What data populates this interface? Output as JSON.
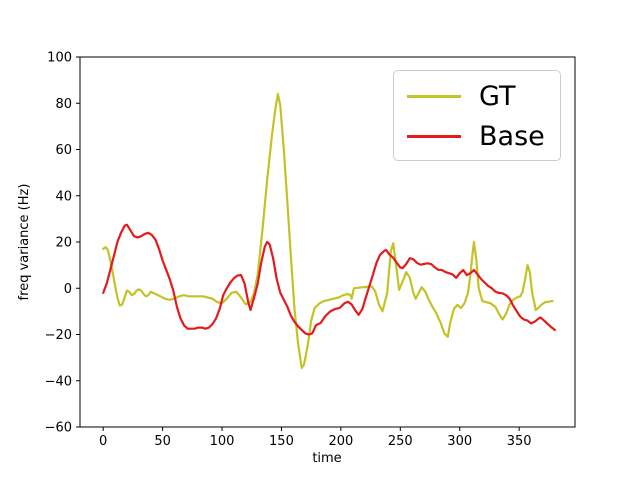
{
  "chart_data": {
    "type": "line",
    "title": "",
    "xlabel": "time",
    "ylabel": "freq variance (Hz)",
    "xlim": [
      -19.5,
      397
    ],
    "ylim": [
      -60,
      100
    ],
    "x_ticks": [
      0,
      50,
      100,
      150,
      200,
      250,
      300,
      350
    ],
    "x_tick_labels": [
      "0",
      "50",
      "100",
      "150",
      "200",
      "250",
      "300",
      "350"
    ],
    "y_ticks": [
      -60,
      -40,
      -20,
      0,
      20,
      40,
      60,
      80,
      100
    ],
    "y_tick_labels": [
      "−60",
      "−40",
      "−20",
      "0",
      "20",
      "40",
      "60",
      "80",
      "100"
    ],
    "grid": false,
    "axis_color": "#000000",
    "legend": {
      "position": "upper right",
      "border_color": "#cccccc",
      "entries": [
        "GT",
        "Base"
      ]
    },
    "series": [
      {
        "name": "GT",
        "color": "#c3c327",
        "points": [
          [
            0,
            17
          ],
          [
            2,
            17.8
          ],
          [
            4,
            16.5
          ],
          [
            6,
            12
          ],
          [
            8,
            7
          ],
          [
            10,
            1
          ],
          [
            12,
            -4
          ],
          [
            14,
            -7.5
          ],
          [
            16,
            -7
          ],
          [
            18,
            -4
          ],
          [
            20,
            -1
          ],
          [
            22,
            -1.5
          ],
          [
            24,
            -3
          ],
          [
            26,
            -2.5
          ],
          [
            28,
            -1
          ],
          [
            30,
            -0.5
          ],
          [
            32,
            -1
          ],
          [
            34,
            -2.5
          ],
          [
            36,
            -3.5
          ],
          [
            38,
            -3
          ],
          [
            40,
            -1.5
          ],
          [
            44,
            -2.5
          ],
          [
            48,
            -3.5
          ],
          [
            52,
            -4.5
          ],
          [
            56,
            -5
          ],
          [
            60,
            -4.5
          ],
          [
            64,
            -3.5
          ],
          [
            68,
            -3
          ],
          [
            72,
            -3.5
          ],
          [
            76,
            -3.5
          ],
          [
            80,
            -3.5
          ],
          [
            84,
            -3.5
          ],
          [
            88,
            -4
          ],
          [
            92,
            -4.5
          ],
          [
            96,
            -6
          ],
          [
            100,
            -6.5
          ],
          [
            104,
            -4.5
          ],
          [
            108,
            -2
          ],
          [
            112,
            -1.5
          ],
          [
            116,
            -4
          ],
          [
            120,
            -7
          ],
          [
            124,
            -6
          ],
          [
            127,
            -2
          ],
          [
            130,
            6
          ],
          [
            134,
            25
          ],
          [
            138,
            47
          ],
          [
            142,
            66
          ],
          [
            145,
            78
          ],
          [
            147,
            84
          ],
          [
            149,
            79
          ],
          [
            152,
            60
          ],
          [
            155,
            37
          ],
          [
            158,
            13
          ],
          [
            161,
            -9
          ],
          [
            164,
            -24
          ],
          [
            167,
            -34.5
          ],
          [
            169,
            -33
          ],
          [
            172,
            -25
          ],
          [
            175,
            -14
          ],
          [
            178,
            -8.5
          ],
          [
            182,
            -6.5
          ],
          [
            186,
            -5.5
          ],
          [
            190,
            -5
          ],
          [
            194,
            -4.5
          ],
          [
            198,
            -4
          ],
          [
            202,
            -3
          ],
          [
            206,
            -2.5
          ],
          [
            208,
            -3
          ],
          [
            209,
            -4.5
          ],
          [
            211,
            0
          ],
          [
            214,
            0.2
          ],
          [
            218,
            0.4
          ],
          [
            222,
            0.6
          ],
          [
            226,
            0.8
          ],
          [
            229,
            -1.5
          ],
          [
            232,
            -7
          ],
          [
            235,
            -10
          ],
          [
            239,
            -2
          ],
          [
            242,
            16
          ],
          [
            244,
            19.5
          ],
          [
            247,
            8
          ],
          [
            249,
            -0.7
          ],
          [
            252,
            3
          ],
          [
            255,
            7
          ],
          [
            258,
            4.5
          ],
          [
            261,
            -2
          ],
          [
            263,
            -4.5
          ],
          [
            266,
            -1.5
          ],
          [
            268,
            0.5
          ],
          [
            271,
            -1.5
          ],
          [
            274,
            -5
          ],
          [
            277,
            -8
          ],
          [
            280,
            -10.5
          ],
          [
            284,
            -15
          ],
          [
            287,
            -19.5
          ],
          [
            290,
            -21
          ],
          [
            292,
            -15
          ],
          [
            295,
            -9
          ],
          [
            298,
            -7.2
          ],
          [
            301,
            -8.5
          ],
          [
            304,
            -6.5
          ],
          [
            307,
            -2
          ],
          [
            309,
            6
          ],
          [
            311,
            16
          ],
          [
            312,
            20
          ],
          [
            314,
            12
          ],
          [
            316,
            0
          ],
          [
            319,
            -5.5
          ],
          [
            322,
            -6
          ],
          [
            326,
            -6.5
          ],
          [
            330,
            -8
          ],
          [
            333,
            -11
          ],
          [
            336,
            -13.5
          ],
          [
            339,
            -11
          ],
          [
            342,
            -7
          ],
          [
            345,
            -5
          ],
          [
            348,
            -4
          ],
          [
            351,
            -3.5
          ],
          [
            353,
            -1.5
          ],
          [
            355,
            4
          ],
          [
            357,
            10
          ],
          [
            359,
            7
          ],
          [
            361,
            -2
          ],
          [
            364,
            -9.4
          ],
          [
            366,
            -8.5
          ],
          [
            369,
            -7
          ],
          [
            372,
            -6
          ],
          [
            375,
            -5.8
          ],
          [
            378,
            -5.5
          ]
        ]
      },
      {
        "name": "Base",
        "color": "#e41a1c",
        "points": [
          [
            0,
            -2
          ],
          [
            3,
            2
          ],
          [
            6,
            8
          ],
          [
            9,
            14
          ],
          [
            12,
            20
          ],
          [
            15,
            24
          ],
          [
            18,
            27
          ],
          [
            20,
            27.5
          ],
          [
            23,
            25
          ],
          [
            26,
            22.5
          ],
          [
            29,
            22
          ],
          [
            32,
            22.5
          ],
          [
            35,
            23.5
          ],
          [
            38,
            24
          ],
          [
            41,
            23
          ],
          [
            44,
            21
          ],
          [
            47,
            17
          ],
          [
            50,
            12
          ],
          [
            53,
            8
          ],
          [
            56,
            4
          ],
          [
            59,
            -1
          ],
          [
            62,
            -8
          ],
          [
            65,
            -13
          ],
          [
            68,
            -16
          ],
          [
            71,
            -17.5
          ],
          [
            74,
            -17.5
          ],
          [
            77,
            -17.5
          ],
          [
            80,
            -17
          ],
          [
            83,
            -17
          ],
          [
            86,
            -17.5
          ],
          [
            89,
            -17
          ],
          [
            92,
            -15.5
          ],
          [
            95,
            -13
          ],
          [
            98,
            -9
          ],
          [
            101,
            -3
          ],
          [
            104,
            0
          ],
          [
            107,
            2.5
          ],
          [
            110,
            4.3
          ],
          [
            113,
            5.5
          ],
          [
            116,
            5.7
          ],
          [
            119,
            2
          ],
          [
            122,
            -6
          ],
          [
            124,
            -9.4
          ],
          [
            127,
            -4
          ],
          [
            130,
            2
          ],
          [
            133,
            11
          ],
          [
            136,
            18
          ],
          [
            138,
            20
          ],
          [
            140,
            19
          ],
          [
            143,
            13
          ],
          [
            146,
            4
          ],
          [
            149,
            -2
          ],
          [
            152,
            -5
          ],
          [
            155,
            -8
          ],
          [
            158,
            -12
          ],
          [
            161,
            -14.5
          ],
          [
            164,
            -16.5
          ],
          [
            167,
            -18
          ],
          [
            170,
            -19.5
          ],
          [
            173,
            -20
          ],
          [
            176,
            -19.5
          ],
          [
            179,
            -16
          ],
          [
            183,
            -15
          ],
          [
            187,
            -12
          ],
          [
            191,
            -10
          ],
          [
            195,
            -9
          ],
          [
            199,
            -8.5
          ],
          [
            203,
            -6.5
          ],
          [
            206,
            -5.8
          ],
          [
            209,
            -7
          ],
          [
            212,
            -9.5
          ],
          [
            215,
            -11.5
          ],
          [
            218,
            -9
          ],
          [
            221,
            -4
          ],
          [
            224,
            1
          ],
          [
            227,
            6
          ],
          [
            230,
            11
          ],
          [
            233,
            14.5
          ],
          [
            236,
            16
          ],
          [
            238,
            16.6
          ],
          [
            241,
            14.5
          ],
          [
            244,
            13.2
          ],
          [
            247,
            11
          ],
          [
            250,
            9
          ],
          [
            252,
            8.7
          ],
          [
            255,
            10.5
          ],
          [
            258,
            13
          ],
          [
            261,
            12.5
          ],
          [
            264,
            11
          ],
          [
            267,
            10.2
          ],
          [
            270,
            10.5
          ],
          [
            273,
            10.8
          ],
          [
            276,
            10.5
          ],
          [
            279,
            9
          ],
          [
            282,
            8
          ],
          [
            285,
            7.9
          ],
          [
            288,
            7
          ],
          [
            291,
            6.5
          ],
          [
            294,
            6
          ],
          [
            297,
            4.5
          ],
          [
            300,
            6.5
          ],
          [
            303,
            7.9
          ],
          [
            306,
            5.7
          ],
          [
            309,
            6.5
          ],
          [
            312,
            7.9
          ],
          [
            315,
            6
          ],
          [
            318,
            4
          ],
          [
            321,
            2.5
          ],
          [
            324,
            1
          ],
          [
            327,
            0
          ],
          [
            330,
            -1.5
          ],
          [
            333,
            -2
          ],
          [
            336,
            -2.2
          ],
          [
            339,
            -3
          ],
          [
            342,
            -4.5
          ],
          [
            345,
            -7.5
          ],
          [
            348,
            -10
          ],
          [
            351,
            -12.3
          ],
          [
            354,
            -13.5
          ],
          [
            357,
            -14
          ],
          [
            360,
            -15.2
          ],
          [
            363,
            -14.5
          ],
          [
            366,
            -13.2
          ],
          [
            368,
            -12.6
          ],
          [
            371,
            -14
          ],
          [
            374,
            -15.5
          ],
          [
            377,
            -16.8
          ],
          [
            380,
            -18
          ]
        ]
      }
    ]
  }
}
